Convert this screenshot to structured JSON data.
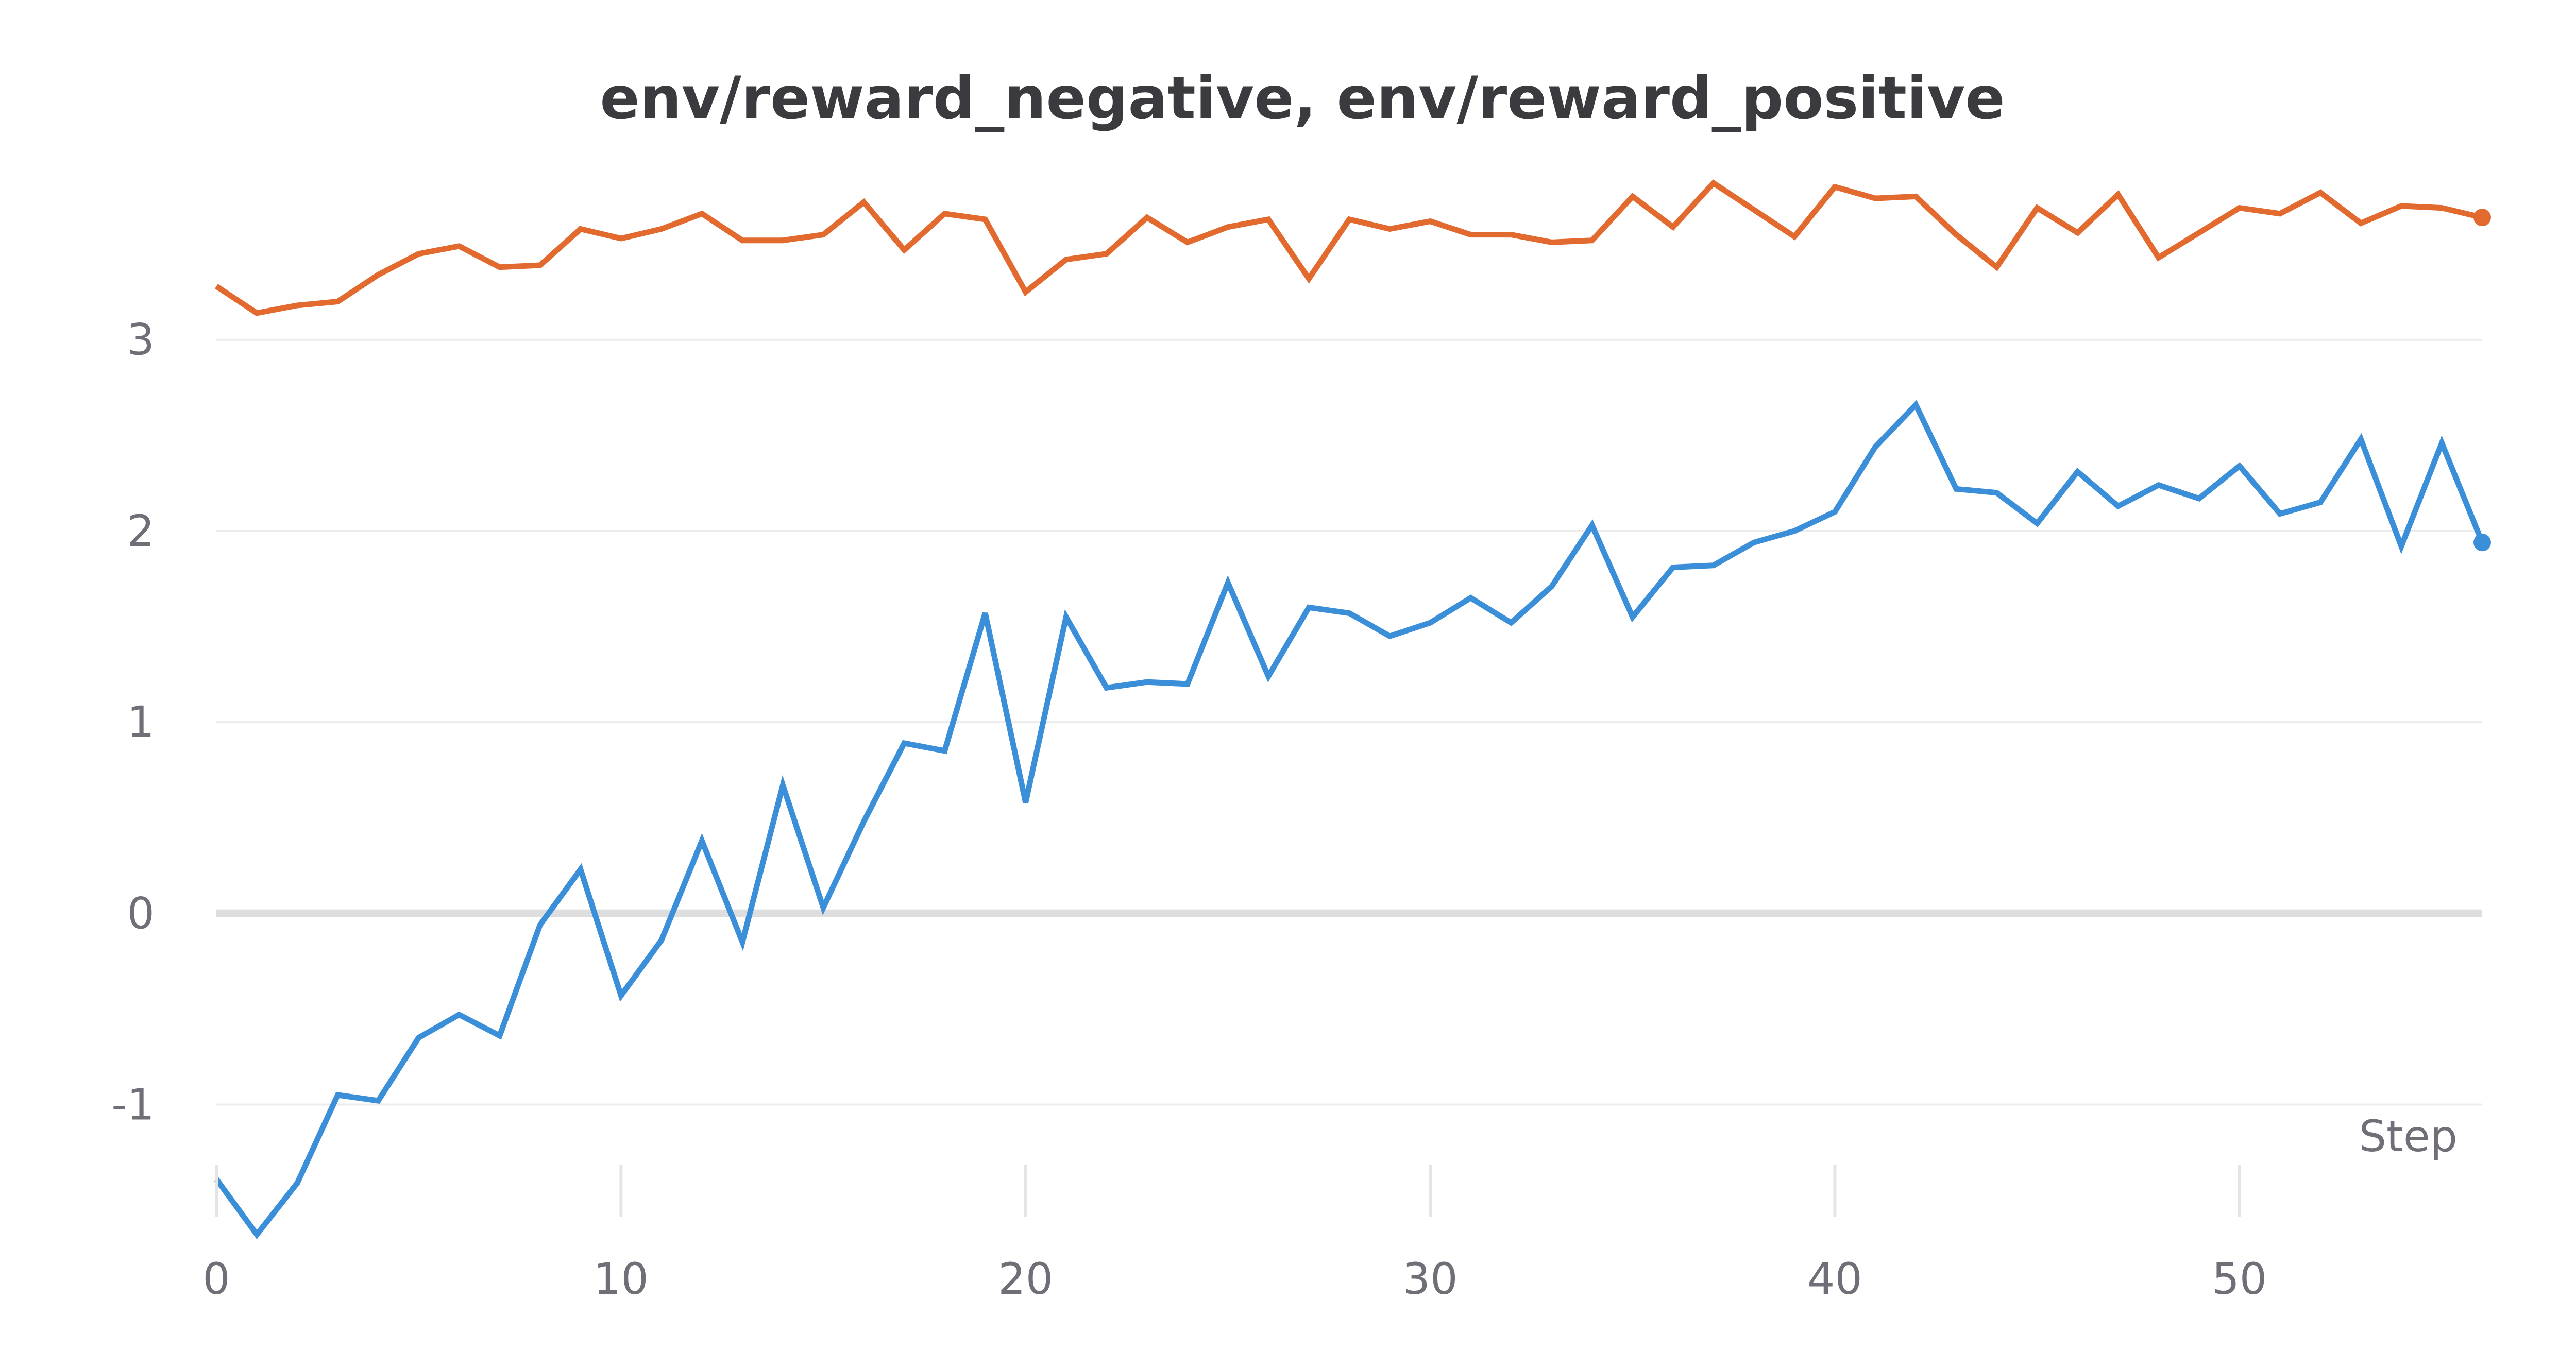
{
  "chart_data": {
    "type": "line",
    "title": "env/reward_negative, env/reward_positive",
    "xlabel": "Step",
    "ylabel": "",
    "x": [
      0,
      1,
      2,
      3,
      4,
      5,
      6,
      7,
      8,
      9,
      10,
      11,
      12,
      13,
      14,
      15,
      16,
      17,
      18,
      19,
      20,
      21,
      22,
      23,
      24,
      25,
      26,
      27,
      28,
      29,
      30,
      31,
      32,
      33,
      34,
      35,
      36,
      37,
      38,
      39,
      40,
      41,
      42,
      43,
      44,
      45,
      46,
      47,
      48,
      49,
      50,
      51,
      52,
      53,
      54,
      55,
      56
    ],
    "xlim": [
      0,
      56
    ],
    "ylim": [
      -1.85,
      4.05
    ],
    "x_ticks": [
      "0",
      "10",
      "20",
      "30",
      "40",
      "50"
    ],
    "y_ticks": [
      "-1",
      "0",
      "1",
      "2",
      "3"
    ],
    "grid": true,
    "series": [
      {
        "color": "#e36a2f",
        "values": [
          3.28,
          3.14,
          3.18,
          3.2,
          3.34,
          3.45,
          3.49,
          3.38,
          3.39,
          3.58,
          3.53,
          3.58,
          3.66,
          3.52,
          3.52,
          3.55,
          3.72,
          3.47,
          3.66,
          3.63,
          3.25,
          3.42,
          3.45,
          3.64,
          3.51,
          3.59,
          3.63,
          3.32,
          3.63,
          3.58,
          3.62,
          3.55,
          3.55,
          3.51,
          3.52,
          3.75,
          3.59,
          3.82,
          3.68,
          3.54,
          3.8,
          3.74,
          3.75,
          3.55,
          3.38,
          3.69,
          3.56,
          3.76,
          3.43,
          3.56,
          3.69,
          3.66,
          3.77,
          3.61,
          3.7,
          3.69,
          3.64
        ]
      },
      {
        "color": "#3b8fd9",
        "values": [
          -1.39,
          -1.68,
          -1.41,
          -0.95,
          -0.98,
          -0.65,
          -0.53,
          -0.64,
          -0.06,
          0.23,
          -0.43,
          -0.14,
          0.38,
          -0.15,
          0.67,
          0.03,
          0.48,
          0.89,
          0.85,
          1.57,
          0.58,
          1.55,
          1.18,
          1.21,
          1.2,
          1.73,
          1.24,
          1.6,
          1.57,
          1.45,
          1.52,
          1.65,
          1.52,
          1.71,
          2.03,
          1.55,
          1.81,
          1.82,
          1.94,
          2.0,
          2.1,
          2.44,
          2.66,
          2.22,
          2.2,
          2.04,
          2.31,
          2.13,
          2.24,
          2.17,
          2.34,
          2.09,
          2.15,
          2.48,
          1.92,
          2.46,
          1.94
        ]
      }
    ]
  }
}
